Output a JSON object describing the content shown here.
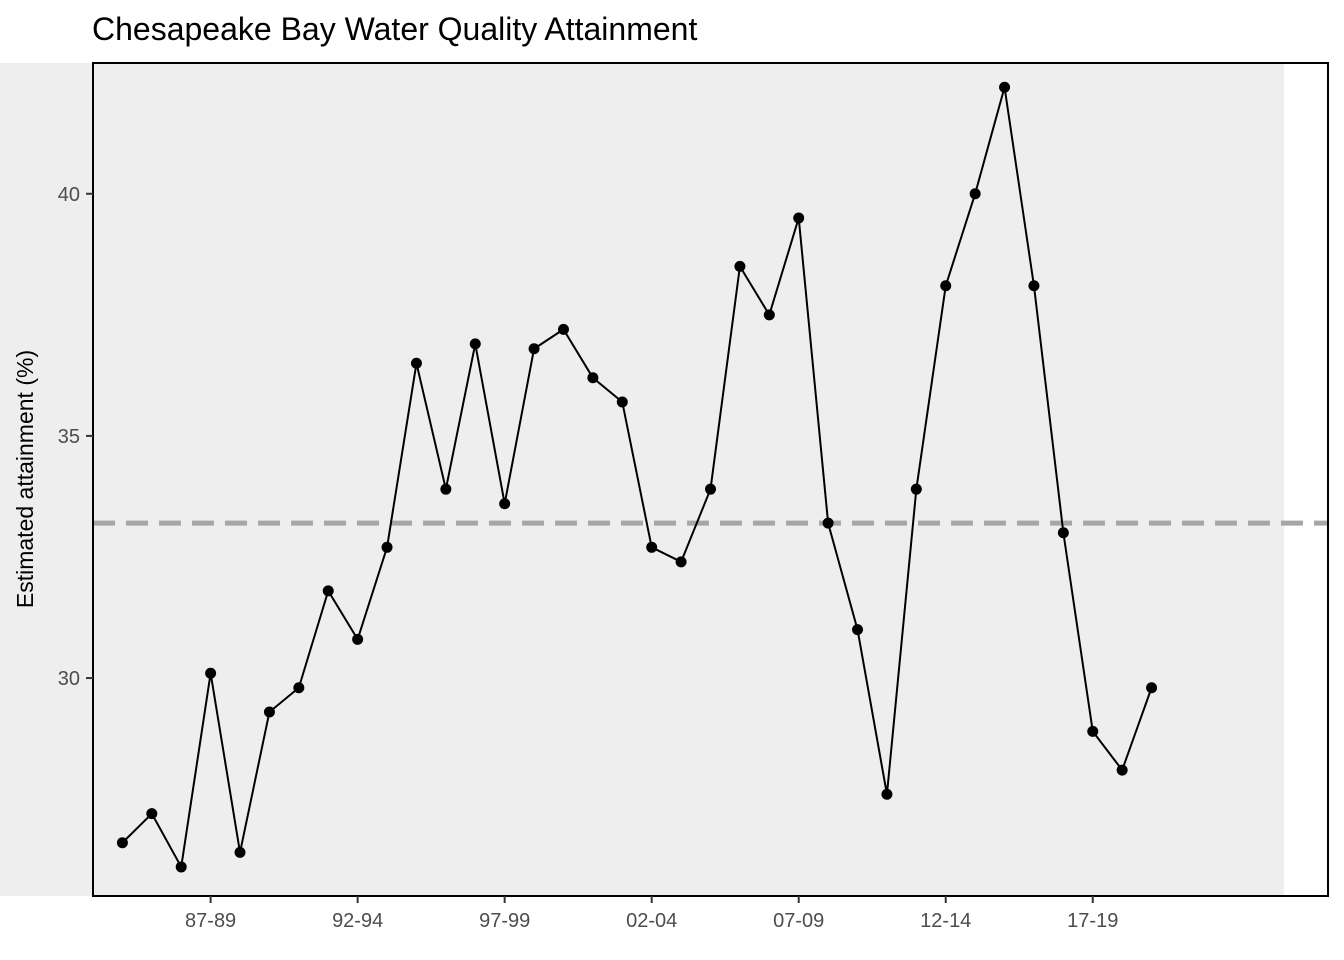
{
  "chart_data": {
    "type": "line",
    "title": "Chesapeake Bay Water Quality Attainment",
    "xlabel": "",
    "ylabel": "Estimated attainment (%)",
    "x_tick_labels": [
      "87-89",
      "92-94",
      "97-99",
      "02-04",
      "07-09",
      "12-14",
      "17-19"
    ],
    "y_ticks": [
      30,
      35,
      40
    ],
    "xlim": [
      1984.0,
      2026.0
    ],
    "ylim": [
      25.5,
      42.7
    ],
    "grid": false,
    "x": [
      1985,
      1986,
      1987,
      1988,
      1989,
      1990,
      1991,
      1992,
      1993,
      1994,
      1995,
      1996,
      1997,
      1998,
      1999,
      2000,
      2001,
      2002,
      2003,
      2004,
      2005,
      2006,
      2007,
      2008,
      2009,
      2010,
      2011,
      2012,
      2013,
      2014,
      2015,
      2016,
      2017,
      2018,
      2019,
      2020
    ],
    "values": [
      26.6,
      27.2,
      26.1,
      30.1,
      26.4,
      29.3,
      29.8,
      31.8,
      30.8,
      32.7,
      36.5,
      33.9,
      36.9,
      33.6,
      36.8,
      37.2,
      36.2,
      35.7,
      32.7,
      32.4,
      33.9,
      38.5,
      37.5,
      39.5,
      33.2,
      31.0,
      27.6,
      33.9,
      38.1,
      40.0,
      42.2,
      38.1,
      33.0,
      28.9,
      28.1,
      29.8
    ],
    "reference_line": {
      "y": 33.2,
      "style": "dashed",
      "color": "#a6a6a6"
    },
    "shaded_region": {
      "x": [
        1980.5,
        2024.5
      ],
      "color": "#eeeeee"
    },
    "colors": {
      "line": "#000000",
      "points": "#000000",
      "panel_border": "#000000"
    }
  }
}
